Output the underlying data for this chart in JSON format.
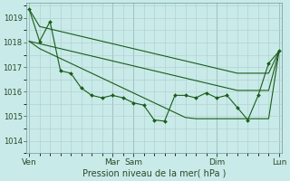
{
  "background_color": "#c8eae8",
  "grid_color": "#b0cccc",
  "line_color": "#1a5c1a",
  "title": "Pression niveau de la mer( hPa )",
  "ylim": [
    1013.7,
    1019.6
  ],
  "yticks": [
    1014,
    1015,
    1016,
    1017,
    1018,
    1019
  ],
  "x_labels": [
    "Ven",
    "Mar",
    "Sam",
    "Dim",
    "Lun"
  ],
  "x_positions": [
    0,
    8,
    10,
    18,
    24
  ],
  "n_points": 25,
  "line_smooth_top": [
    1019.35,
    1018.65,
    1018.55,
    1018.45,
    1018.35,
    1018.25,
    1018.15,
    1018.05,
    1017.95,
    1017.85,
    1017.75,
    1017.65,
    1017.55,
    1017.45,
    1017.35,
    1017.25,
    1017.15,
    1017.05,
    1016.95,
    1016.85,
    1016.75,
    1016.75,
    1016.75,
    1016.75,
    1017.65
  ],
  "line_smooth_mid": [
    1018.05,
    1017.95,
    1017.85,
    1017.75,
    1017.65,
    1017.55,
    1017.45,
    1017.35,
    1017.25,
    1017.15,
    1017.05,
    1016.95,
    1016.85,
    1016.75,
    1016.65,
    1016.55,
    1016.45,
    1016.35,
    1016.25,
    1016.15,
    1016.05,
    1016.05,
    1016.05,
    1016.05,
    1017.65
  ],
  "line_smooth_bot": [
    1018.05,
    1017.75,
    1017.55,
    1017.35,
    1017.15,
    1016.95,
    1016.75,
    1016.55,
    1016.35,
    1016.15,
    1015.95,
    1015.75,
    1015.55,
    1015.35,
    1015.15,
    1014.95,
    1014.9,
    1014.9,
    1014.9,
    1014.9,
    1014.9,
    1014.9,
    1014.9,
    1014.9,
    1017.65
  ],
  "line_detail": [
    1019.35,
    1018.05,
    1018.85,
    1016.85,
    1016.75,
    1016.15,
    1015.85,
    1015.75,
    1015.85,
    1015.75,
    1015.55,
    1015.45,
    1014.85,
    1014.8,
    1015.85,
    1015.85,
    1015.75,
    1015.95,
    1015.75,
    1015.85,
    1015.35,
    1014.85,
    1015.85,
    1017.15,
    1017.65
  ],
  "ytick_fontsize": 6,
  "xtick_fontsize": 6.5,
  "xlabel_fontsize": 7
}
